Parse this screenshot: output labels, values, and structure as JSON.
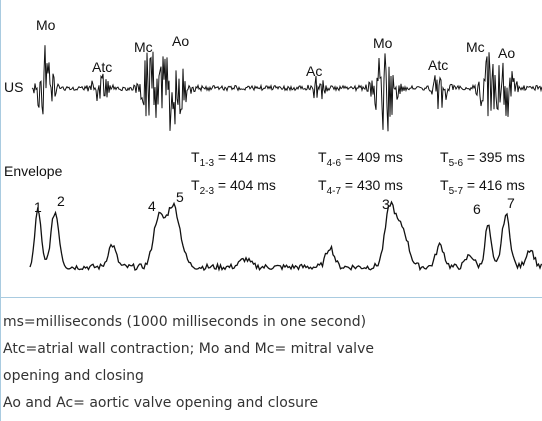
{
  "figure": {
    "us_label": "US",
    "envelope_label": "Envelope",
    "wave_labels": [
      "Mo",
      "Atc",
      "Mc",
      "Ao",
      "Ac",
      "Mo",
      "Atc",
      "Mc",
      "Ao"
    ],
    "timings": [
      {
        "symbol": "T",
        "subscript": "1-3",
        "text": " = 414 ms"
      },
      {
        "symbol": "T",
        "subscript": "4-6",
        "text": " = 409 ms"
      },
      {
        "symbol": "T",
        "subscript": "5-6",
        "text": " = 395 ms"
      },
      {
        "symbol": "T",
        "subscript": "2-3",
        "text": " = 404 ms"
      },
      {
        "symbol": "T",
        "subscript": "4-7",
        "text": " = 430 ms"
      },
      {
        "symbol": "T",
        "subscript": "5-7",
        "text": " = 416 ms"
      }
    ],
    "peak_labels": [
      "1",
      "2",
      "4",
      "5",
      "3",
      "6",
      "7"
    ]
  },
  "caption": [
    "ms=milliseconds (1000 milliseconds in one second)",
    "Atc=atrial wall contraction; Mo and Mc= mitral valve",
    "opening and closing",
    "Ao and Ac= aortic valve opening and closure"
  ]
}
